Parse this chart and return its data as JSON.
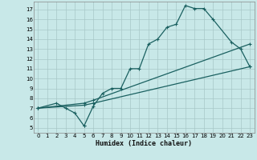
{
  "title": "",
  "xlabel": "Humidex (Indice chaleur)",
  "bg_color": "#c8e8e8",
  "grid_color": "#a8c8c8",
  "line_color": "#1a6060",
  "xlim": [
    -0.5,
    23.5
  ],
  "ylim": [
    4.5,
    17.8
  ],
  "xticks": [
    0,
    1,
    2,
    3,
    4,
    5,
    6,
    7,
    8,
    9,
    10,
    11,
    12,
    13,
    14,
    15,
    16,
    17,
    18,
    19,
    20,
    21,
    22,
    23
  ],
  "yticks": [
    5,
    6,
    7,
    8,
    9,
    10,
    11,
    12,
    13,
    14,
    15,
    16,
    17
  ],
  "line1_x": [
    0,
    2,
    3,
    4,
    5,
    5,
    6,
    7,
    8,
    9,
    10,
    11,
    12,
    13,
    14,
    15,
    16,
    17,
    18,
    19,
    21,
    22,
    23
  ],
  "line1_y": [
    7,
    7.5,
    7,
    6.5,
    5.2,
    5.2,
    7.2,
    8.5,
    9.0,
    9.0,
    11.0,
    11.0,
    13.5,
    14.0,
    15.2,
    15.5,
    17.4,
    17.1,
    17.1,
    16.0,
    13.7,
    13.0,
    11.2
  ],
  "line2_x": [
    0,
    5,
    6,
    23
  ],
  "line2_y": [
    7,
    7.5,
    7.8,
    13.5
  ],
  "line3_x": [
    0,
    5,
    6,
    23
  ],
  "line3_y": [
    7,
    7.3,
    7.5,
    11.2
  ],
  "markersize": 3,
  "linewidth": 0.9
}
